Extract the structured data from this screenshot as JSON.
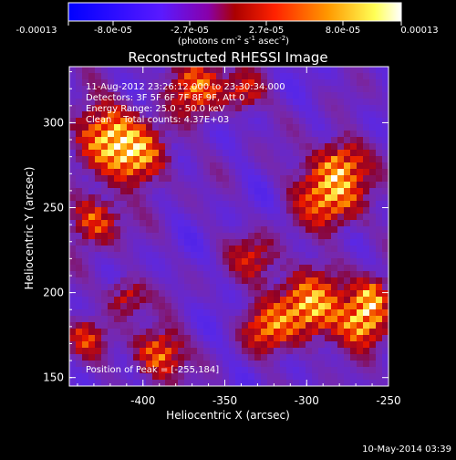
{
  "colorbar": {
    "tick_labels": [
      "-0.00013",
      "-8.0e-05",
      "-2.7e-05",
      "2.7e-05",
      "8.0e-05",
      "0.00013"
    ],
    "unit_prefix": "(photons cm",
    "unit_exp1": "-2",
    "unit_mid": " s",
    "unit_exp2": "-1",
    "unit_mid2": " asec",
    "unit_exp3": "-2",
    "unit_suffix": ")",
    "colormap": [
      "#0000ff",
      "#6a00ff",
      "#8a00c0",
      "#ff0000",
      "#ff8c00",
      "#ffff66",
      "#ffffff"
    ]
  },
  "plot": {
    "title": "Reconstructed RHESSI Image",
    "xlabel": "Heliocentric X (arcsec)",
    "ylabel": "Heliocentric Y (arcsec)",
    "x_ticks": [
      "-400",
      "-350",
      "-300",
      "-250"
    ],
    "y_ticks": [
      "150",
      "200",
      "250",
      "300"
    ],
    "x_range": [
      -445,
      -250
    ],
    "y_range": [
      145,
      333
    ],
    "annotations": [
      "11-Aug-2012 23:26:12.000 to 23:30:34.000",
      "Detectors: 3F 5F 6F 7F 8F 9F, Att 0",
      "Energy Range: 25.0 - 50.0 keV",
      "Clean    Total counts: 4.37E+03"
    ],
    "peak_label": "Position of Peak = [-255,184]",
    "peak": [
      -255,
      184
    ]
  },
  "footer": {
    "timestamp": "10-May-2014 03:39"
  }
}
